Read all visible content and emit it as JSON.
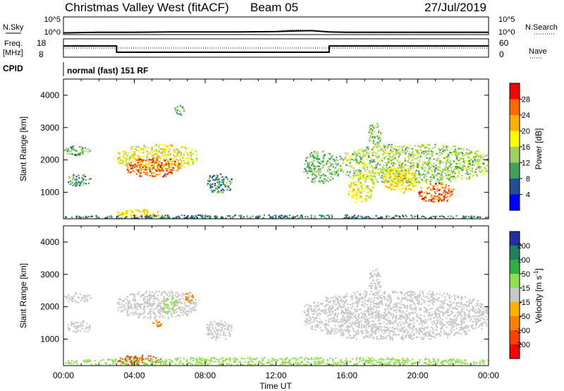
{
  "header": {
    "title": "Christmas Valley West (fitACF)",
    "beam": "Beam 05",
    "date": "27/Jul/2019"
  },
  "panels": {
    "nsky_label": "N.Sky",
    "nsearch_label": "N.Search",
    "freq_label_1": "Freq.",
    "freq_label_2": "[MHz]",
    "nave_label": "Nave",
    "cpid_label": "CPID",
    "cpid_value": "normal (fast) 151 RF",
    "noise_ticks_left": [
      "10^5",
      "10^0"
    ],
    "noise_ticks_right": [
      "10^5",
      "10^0"
    ],
    "freq_ticks": [
      "18",
      "8"
    ],
    "nave_ticks": [
      "60",
      "0"
    ]
  },
  "axes": {
    "ylabel": "Slant Range [km]",
    "xlabel": "Time UT",
    "yticks": [
      "4000",
      "3000",
      "2000",
      "1000"
    ],
    "xticks": [
      "00:00",
      "04:00",
      "08:00",
      "12:00",
      "16:00",
      "20:00",
      "00:00"
    ]
  },
  "colorbars": {
    "power": {
      "label": "Power [dB]",
      "ticks": [
        "28",
        "24",
        "20",
        "16",
        "12",
        "8",
        "4"
      ],
      "colors": [
        "#ff0000",
        "#ff6a00",
        "#ffb000",
        "#ffff00",
        "#a0d060",
        "#40a060",
        "#205090",
        "#0000ff"
      ]
    },
    "velocity": {
      "label": "Velocity [m s",
      "label_sup": "-1",
      "label_end": "]",
      "ticks": [
        "200",
        "100",
        "50",
        "15",
        "-15",
        "-50",
        "-100",
        "-200"
      ],
      "colors": [
        "#2030a0",
        "#208060",
        "#30b040",
        "#90e050",
        "#c8c8c8",
        "#ffb000",
        "#ff8000",
        "#ff4000",
        "#ff0000"
      ]
    }
  },
  "chart_data": [
    {
      "type": "line",
      "name": "noise",
      "x_hours": [
        0,
        2,
        4,
        6,
        8,
        10,
        12,
        13,
        14,
        15,
        16,
        18,
        20,
        22,
        24
      ],
      "nsky_log": [
        0.3,
        0.5,
        0.5,
        0.6,
        0.6,
        0.6,
        0.7,
        0.9,
        1.0,
        0.6,
        0.5,
        0.5,
        0.5,
        0.5,
        0.5
      ],
      "nsearch_log": [
        0.4,
        0.5,
        0.6,
        0.6,
        0.6,
        0.7,
        0.8,
        1.3,
        1.0,
        0.7,
        0.6,
        0.6,
        0.6,
        0.6,
        0.6
      ],
      "ylim_log": [
        0,
        5
      ]
    },
    {
      "type": "line",
      "name": "frequency",
      "x_hours": [
        0,
        3,
        3,
        15,
        15,
        24
      ],
      "freq_mhz": [
        14.2,
        14.2,
        10.5,
        10.5,
        14.2,
        14.2
      ],
      "nave": [
        30,
        30,
        30,
        30,
        30,
        30
      ],
      "ylim_freq": [
        8,
        18
      ],
      "ylim_nave": [
        0,
        60
      ]
    },
    {
      "type": "heatmap",
      "name": "power",
      "xlim_hours": [
        0,
        24
      ],
      "ylim_km": [
        180,
        4500
      ],
      "regions": [
        {
          "x": [
            0,
            1.5
          ],
          "y": [
            2150,
            2450
          ],
          "v": 11
        },
        {
          "x": [
            0.2,
            1.5
          ],
          "y": [
            1200,
            1600
          ],
          "v": 10
        },
        {
          "x": [
            3,
            7.5
          ],
          "y": [
            1700,
            2500
          ],
          "v": 18
        },
        {
          "x": [
            3.5,
            6.5
          ],
          "y": [
            1500,
            2100
          ],
          "v": 26
        },
        {
          "x": [
            6.2,
            6.8
          ],
          "y": [
            3400,
            3700
          ],
          "v": 12
        },
        {
          "x": [
            8,
            9.5
          ],
          "y": [
            1000,
            1600
          ],
          "v": 9
        },
        {
          "x": [
            3,
            5.5
          ],
          "y": [
            220,
            500
          ],
          "v": 20
        },
        {
          "x": [
            0,
            24
          ],
          "y": [
            180,
            320
          ],
          "v": 8
        },
        {
          "x": [
            13.5,
            15.5
          ],
          "y": [
            1300,
            2300
          ],
          "v": 12
        },
        {
          "x": [
            15.5,
            24
          ],
          "y": [
            1300,
            2500
          ],
          "v": 14
        },
        {
          "x": [
            16,
            17.5
          ],
          "y": [
            700,
            1600
          ],
          "v": 18
        },
        {
          "x": [
            17.2,
            17.9
          ],
          "y": [
            2400,
            3200
          ],
          "v": 13
        },
        {
          "x": [
            20,
            22
          ],
          "y": [
            700,
            1300
          ],
          "v": 26
        },
        {
          "x": [
            18,
            20
          ],
          "y": [
            1000,
            1800
          ],
          "v": 20
        }
      ]
    },
    {
      "type": "heatmap",
      "name": "velocity",
      "xlim_hours": [
        0,
        24
      ],
      "ylim_km": [
        180,
        4500
      ],
      "regions": [
        {
          "x": [
            0,
            1.5
          ],
          "y": [
            2150,
            2450
          ],
          "v": 0
        },
        {
          "x": [
            0.2,
            1.5
          ],
          "y": [
            1200,
            1600
          ],
          "v": 0
        },
        {
          "x": [
            3,
            7.5
          ],
          "y": [
            1650,
            2500
          ],
          "v": 0
        },
        {
          "x": [
            5.5,
            6.5
          ],
          "y": [
            1800,
            2300
          ],
          "v": 20
        },
        {
          "x": [
            6.8,
            7.3
          ],
          "y": [
            2100,
            2500
          ],
          "v": -60
        },
        {
          "x": [
            5,
            5.5
          ],
          "y": [
            1400,
            1600
          ],
          "v": -80
        },
        {
          "x": [
            3,
            5.5
          ],
          "y": [
            220,
            520
          ],
          "v": -150
        },
        {
          "x": [
            0,
            24
          ],
          "y": [
            180,
            450
          ],
          "v": 30
        },
        {
          "x": [
            8,
            9.5
          ],
          "y": [
            1000,
            1600
          ],
          "v": 0
        },
        {
          "x": [
            13.5,
            24
          ],
          "y": [
            1000,
            2500
          ],
          "v": 0
        },
        {
          "x": [
            17.2,
            17.9
          ],
          "y": [
            2400,
            3200
          ],
          "v": 0
        }
      ]
    }
  ]
}
